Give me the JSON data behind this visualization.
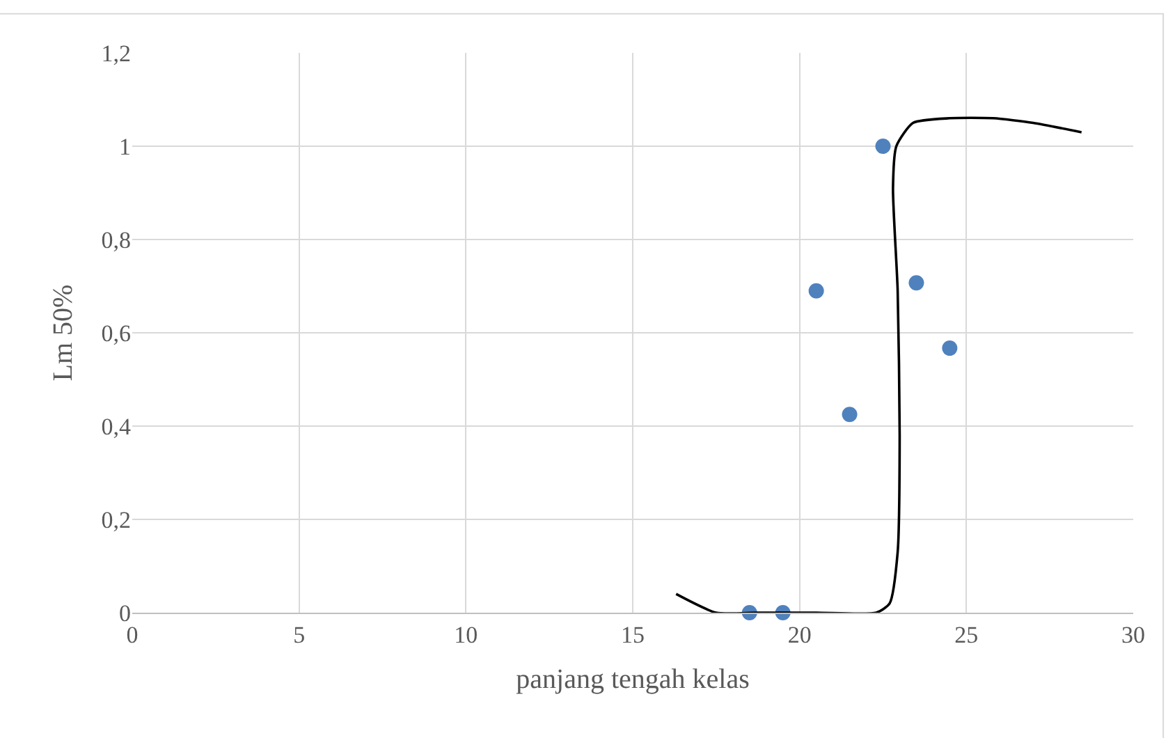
{
  "chart_data": {
    "type": "scatter",
    "xlabel": "panjang tengah kelas",
    "ylabel": "Lm 50%",
    "xlim": [
      0,
      30
    ],
    "xticks": [
      0,
      5,
      10,
      15,
      20,
      25,
      30
    ],
    "ylim": [
      0,
      1.2
    ],
    "yticks": [
      {
        "value": 0,
        "label": "0"
      },
      {
        "value": 0.2,
        "label": "0,2"
      },
      {
        "value": 0.4,
        "label": "0,4"
      },
      {
        "value": 0.6,
        "label": "0,6"
      },
      {
        "value": 0.8,
        "label": "0,8"
      },
      {
        "value": 1,
        "label": "1"
      },
      {
        "value": 1.2,
        "label": "1,2"
      }
    ],
    "grid": true,
    "series": [
      {
        "marker": "circle",
        "color": "#4f81bd",
        "x": [
          18.5,
          19.5,
          20.5,
          21.5,
          22.5,
          23.5,
          24.5
        ],
        "values": [
          0,
          0,
          0.69,
          0.425,
          1.0,
          0.707,
          0.567
        ]
      },
      {
        "type": "line",
        "marker": "none",
        "color": "#000000",
        "line_style": "solid",
        "x": [
          16.3,
          17.5,
          18.75,
          20.5,
          22.3,
          22.7,
          22.94,
          23.0,
          22.94,
          22.8,
          22.9,
          23.4,
          24.5,
          25.8,
          27.0,
          28.45
        ],
        "values": [
          0.04,
          0.0,
          0.0,
          0.0,
          0.0,
          0.02,
          0.13,
          0.38,
          0.69,
          0.91,
          1.0,
          1.05,
          1.06,
          1.06,
          1.05,
          1.03
        ]
      }
    ]
  }
}
